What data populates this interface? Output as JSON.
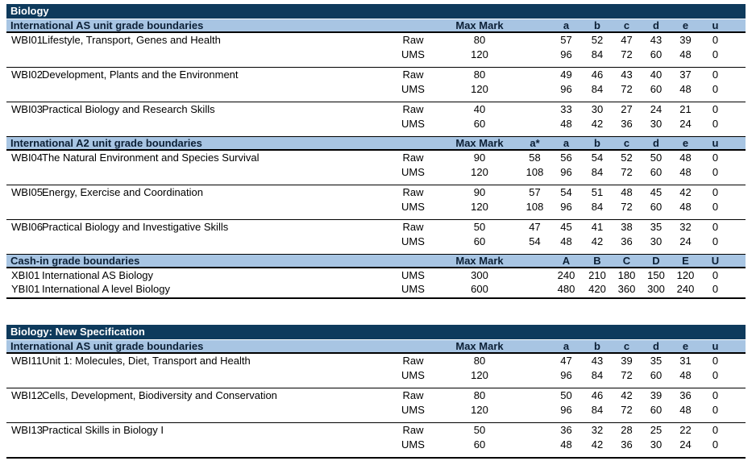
{
  "colors": {
    "navy_bar": "#0E3A5C",
    "light_blue_bar": "#A8C5E3",
    "bar_text": "#0B1F35",
    "navy_bar_text": "#FFFFFF",
    "body_text": "#000000",
    "rule": "#000000"
  },
  "tables": [
    {
      "title": "Biology",
      "sections": [
        {
          "heading": "International AS unit grade boundaries",
          "max_mark_label": "Max Mark",
          "grade_headers": [
            "",
            "a",
            "b",
            "c",
            "d",
            "e",
            "u"
          ],
          "units": [
            {
              "code": "WBI01",
              "name": "Lifestyle, Transport, Genes and Health",
              "rows": [
                {
                  "type": "Raw",
                  "max": "80",
                  "grades": [
                    "",
                    "57",
                    "52",
                    "47",
                    "43",
                    "39",
                    "0"
                  ]
                },
                {
                  "type": "UMS",
                  "max": "120",
                  "grades": [
                    "",
                    "96",
                    "84",
                    "72",
                    "60",
                    "48",
                    "0"
                  ]
                }
              ]
            },
            {
              "code": "WBI02",
              "name": "Development, Plants and the Environment",
              "rows": [
                {
                  "type": "Raw",
                  "max": "80",
                  "grades": [
                    "",
                    "49",
                    "46",
                    "43",
                    "40",
                    "37",
                    "0"
                  ]
                },
                {
                  "type": "UMS",
                  "max": "120",
                  "grades": [
                    "",
                    "96",
                    "84",
                    "72",
                    "60",
                    "48",
                    "0"
                  ]
                }
              ]
            },
            {
              "code": "WBI03",
              "name": "Practical Biology and Research Skills",
              "rows": [
                {
                  "type": "Raw",
                  "max": "40",
                  "grades": [
                    "",
                    "33",
                    "30",
                    "27",
                    "24",
                    "21",
                    "0"
                  ]
                },
                {
                  "type": "UMS",
                  "max": "60",
                  "grades": [
                    "",
                    "48",
                    "42",
                    "36",
                    "30",
                    "24",
                    "0"
                  ]
                }
              ]
            }
          ]
        },
        {
          "heading": "International A2 unit grade boundaries",
          "max_mark_label": "Max Mark",
          "grade_headers": [
            "a*",
            "a",
            "b",
            "c",
            "d",
            "e",
            "u"
          ],
          "units": [
            {
              "code": "WBI04",
              "name": "The Natural Environment and Species Survival",
              "rows": [
                {
                  "type": "Raw",
                  "max": "90",
                  "grades": [
                    "58",
                    "56",
                    "54",
                    "52",
                    "50",
                    "48",
                    "0"
                  ]
                },
                {
                  "type": "UMS",
                  "max": "120",
                  "grades": [
                    "108",
                    "96",
                    "84",
                    "72",
                    "60",
                    "48",
                    "0"
                  ]
                }
              ]
            },
            {
              "code": "WBI05",
              "name": "Energy, Exercise and Coordination",
              "rows": [
                {
                  "type": "Raw",
                  "max": "90",
                  "grades": [
                    "57",
                    "54",
                    "51",
                    "48",
                    "45",
                    "42",
                    "0"
                  ]
                },
                {
                  "type": "UMS",
                  "max": "120",
                  "grades": [
                    "108",
                    "96",
                    "84",
                    "72",
                    "60",
                    "48",
                    "0"
                  ]
                }
              ]
            },
            {
              "code": "WBI06",
              "name": "Practical Biology and Investigative Skills",
              "rows": [
                {
                  "type": "Raw",
                  "max": "50",
                  "grades": [
                    "47",
                    "45",
                    "41",
                    "38",
                    "35",
                    "32",
                    "0"
                  ]
                },
                {
                  "type": "UMS",
                  "max": "60",
                  "grades": [
                    "54",
                    "48",
                    "42",
                    "36",
                    "30",
                    "24",
                    "0"
                  ]
                }
              ]
            }
          ]
        },
        {
          "heading": "Cash-in grade boundaries",
          "max_mark_label": "Max Mark",
          "grade_headers": [
            "",
            "A",
            "B",
            "C",
            "D",
            "E",
            "U"
          ],
          "compact": true,
          "units": [
            {
              "code": "XBI01",
              "name": "International AS Biology",
              "rows": [
                {
                  "type": "UMS",
                  "max": "300",
                  "grades": [
                    "",
                    "240",
                    "210",
                    "180",
                    "150",
                    "120",
                    "0"
                  ]
                }
              ]
            },
            {
              "code": "YBI01",
              "name": "International A level Biology",
              "rows": [
                {
                  "type": "UMS",
                  "max": "600",
                  "grades": [
                    "",
                    "480",
                    "420",
                    "360",
                    "300",
                    "240",
                    "0"
                  ]
                }
              ]
            }
          ]
        }
      ]
    },
    {
      "title": "Biology: New Specification",
      "sections": [
        {
          "heading": "International AS unit grade boundaries",
          "max_mark_label": "Max Mark",
          "grade_headers": [
            "",
            "a",
            "b",
            "c",
            "d",
            "e",
            "u"
          ],
          "units": [
            {
              "code": "WBI11",
              "name": "Unit 1: Molecules, Diet, Transport and Health",
              "rows": [
                {
                  "type": "Raw",
                  "max": "80",
                  "grades": [
                    "",
                    "47",
                    "43",
                    "39",
                    "35",
                    "31",
                    "0"
                  ]
                },
                {
                  "type": "UMS",
                  "max": "120",
                  "grades": [
                    "",
                    "96",
                    "84",
                    "72",
                    "60",
                    "48",
                    "0"
                  ]
                }
              ]
            },
            {
              "code": "WBI12",
              "name": "Cells, Development, Biodiversity and Conservation",
              "rows": [
                {
                  "type": "Raw",
                  "max": "80",
                  "grades": [
                    "",
                    "50",
                    "46",
                    "42",
                    "39",
                    "36",
                    "0"
                  ]
                },
                {
                  "type": "UMS",
                  "max": "120",
                  "grades": [
                    "",
                    "96",
                    "84",
                    "72",
                    "60",
                    "48",
                    "0"
                  ]
                }
              ]
            },
            {
              "code": "WBI13",
              "name": "Practical Skills in Biology I",
              "rows": [
                {
                  "type": "Raw",
                  "max": "50",
                  "grades": [
                    "",
                    "36",
                    "32",
                    "28",
                    "25",
                    "22",
                    "0"
                  ]
                },
                {
                  "type": "UMS",
                  "max": "60",
                  "grades": [
                    "",
                    "48",
                    "42",
                    "36",
                    "30",
                    "24",
                    "0"
                  ]
                }
              ]
            }
          ]
        }
      ]
    }
  ]
}
